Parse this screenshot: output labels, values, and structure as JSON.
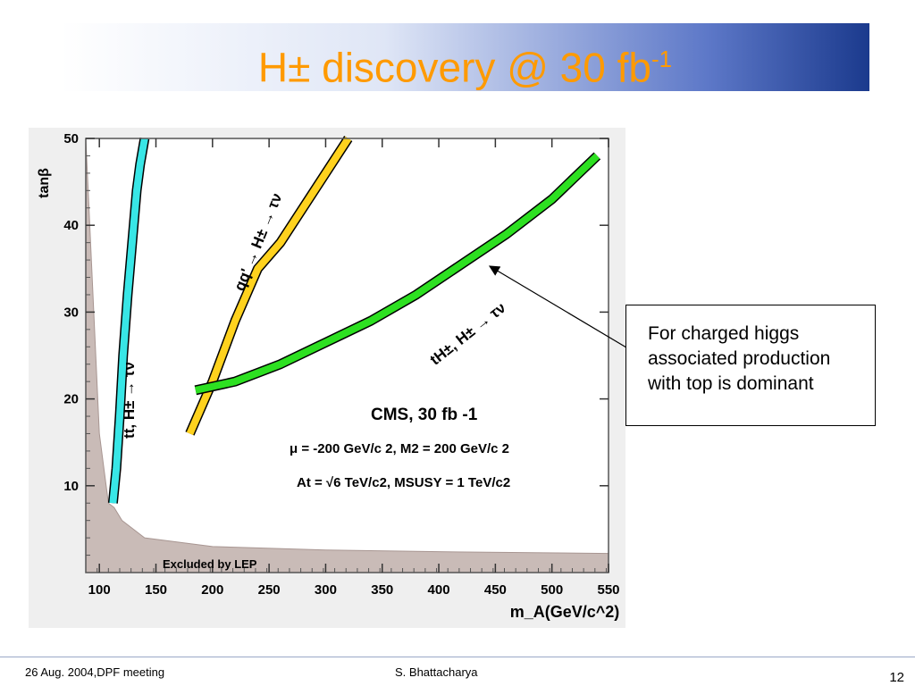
{
  "slide": {
    "title": {
      "base": "H± discovery @ 30 fb",
      "exponent": "-1"
    },
    "callout": [
      "For charged higgs",
      "associated production",
      "with top is dominant"
    ],
    "footer": {
      "left": "26 Aug. 2004,DPF meeting",
      "center": "S. Bhattacharya",
      "page": "12"
    }
  },
  "chart_data": {
    "type": "line",
    "xlabel": "m_A(GeV/c^2)",
    "ylabel": "tanβ",
    "xlim": [
      88,
      550
    ],
    "ylim": [
      0,
      50
    ],
    "x_ticks": [
      100,
      150,
      200,
      250,
      300,
      350,
      400,
      450,
      500,
      550
    ],
    "y_ticks": [
      10,
      20,
      30,
      40,
      50
    ],
    "series": [
      {
        "name": "tt, H± → τν",
        "color": "#38e6e6",
        "x": [
          112,
          115,
          118,
          121,
          125,
          129,
          133,
          136,
          140
        ],
        "y": [
          8,
          12,
          18,
          25,
          32,
          38,
          44,
          47,
          50
        ]
      },
      {
        "name": "qq' → H± → τν",
        "color": "#ffd21e",
        "x": [
          180,
          200,
          220,
          240,
          260,
          280,
          300,
          320
        ],
        "y": [
          16,
          22,
          29,
          35,
          38,
          42,
          46,
          50
        ]
      },
      {
        "name": "tH±, H± → τν",
        "color": "#2de021",
        "x": [
          185,
          220,
          260,
          300,
          340,
          380,
          420,
          460,
          500,
          540
        ],
        "y": [
          21,
          22,
          24,
          26.5,
          29,
          32,
          35.5,
          39,
          43,
          48
        ]
      }
    ],
    "excluded_region": {
      "label": "Excluded by LEP",
      "x": [
        88,
        100,
        108,
        113,
        120,
        140,
        200,
        300,
        400,
        550
      ],
      "y": [
        50,
        16,
        8,
        7.5,
        6,
        4,
        3,
        2.6,
        2.4,
        2.2
      ]
    },
    "annotations": [
      "CMS, 30 fb -1",
      "μ = -200 GeV/c 2, M2 = 200 GeV/c 2",
      "At = √6 TeV/c2, MSUSY = 1 TeV/c2"
    ],
    "grid": false,
    "legend": "none"
  }
}
